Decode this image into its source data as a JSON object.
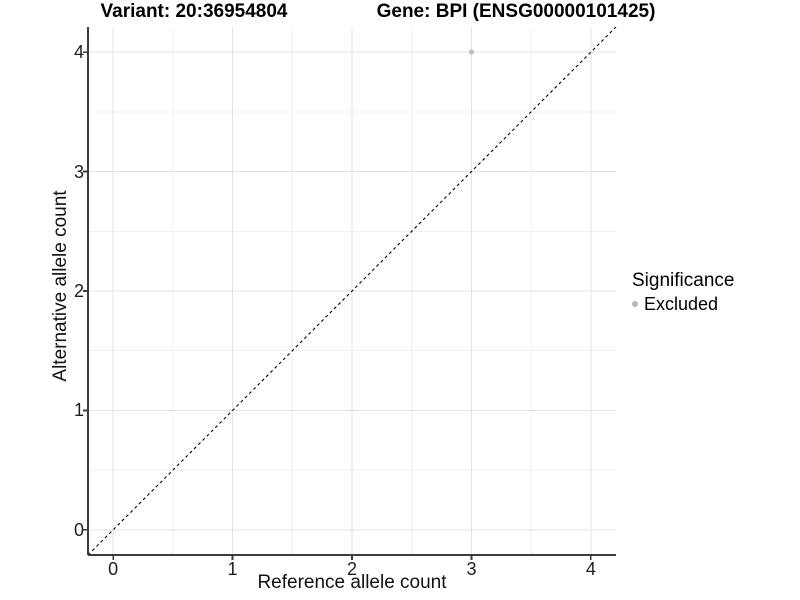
{
  "chart_data": {
    "type": "scatter",
    "titles": {
      "left": "Variant: 20:36954804",
      "right": "Gene: BPI (ENSG00000101425)"
    },
    "xlabel": "Reference allele count",
    "ylabel": "Alternative allele count",
    "xlim": [
      -0.21,
      4.21
    ],
    "ylim": [
      -0.21,
      4.21
    ],
    "xticks": [
      0,
      1,
      2,
      3,
      4
    ],
    "yticks": [
      0,
      1,
      2,
      3,
      4
    ],
    "minor_step": 0.5,
    "grid": "major and minor gridlines on white background",
    "legend_position": "right",
    "series": [
      {
        "name": "Excluded",
        "color": "#c0c0c0",
        "points": [
          {
            "x": 3,
            "y": 4
          }
        ]
      }
    ],
    "reference_line": {
      "kind": "identity",
      "equation": "y = x",
      "line_style": "dashed",
      "color": "#000000"
    }
  },
  "legend": {
    "title": "Significance",
    "items": [
      {
        "label": "Excluded",
        "color": "#b6b6b6"
      }
    ]
  },
  "style_colors": {
    "background": "#ffffff",
    "grid_major": "#e3e3e3",
    "grid_minor": "#f0f0f0",
    "axis_line": "#3d3d3d",
    "title_text": "#000000",
    "tick_text": "#1f1f1f"
  }
}
